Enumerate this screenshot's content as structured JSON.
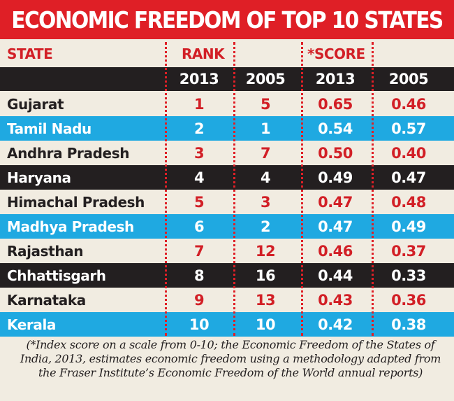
{
  "title": "ECONOMIC FREEDOM OF TOP 10 STATES",
  "headers": {
    "state": "STATE",
    "rank": "RANK",
    "score": "*SCORE",
    "year_a": "2013",
    "year_b": "2005"
  },
  "rows": [
    {
      "state": "Gujarat",
      "rank_2013": "1",
      "rank_2005": "5",
      "score_2013": "0.65",
      "score_2005": "0.46",
      "style": "light"
    },
    {
      "state": "Tamil Nadu",
      "rank_2013": "2",
      "rank_2005": "1",
      "score_2013": "0.54",
      "score_2005": "0.57",
      "style": "blue"
    },
    {
      "state": "Andhra Pradesh",
      "rank_2013": "3",
      "rank_2005": "7",
      "score_2013": "0.50",
      "score_2005": "0.40",
      "style": "light"
    },
    {
      "state": "Haryana",
      "rank_2013": "4",
      "rank_2005": "4",
      "score_2013": "0.49",
      "score_2005": "0.47",
      "style": "dark"
    },
    {
      "state": "Himachal Pradesh",
      "rank_2013": "5",
      "rank_2005": "3",
      "score_2013": "0.47",
      "score_2005": "0.48",
      "style": "light"
    },
    {
      "state": "Madhya Pradesh",
      "rank_2013": "6",
      "rank_2005": "2",
      "score_2013": "0.47",
      "score_2005": "0.49",
      "style": "blue"
    },
    {
      "state": "Rajasthan",
      "rank_2013": "7",
      "rank_2005": "12",
      "score_2013": "0.46",
      "score_2005": "0.37",
      "style": "light"
    },
    {
      "state": "Chhattisgarh",
      "rank_2013": "8",
      "rank_2005": "16",
      "score_2013": "0.44",
      "score_2005": "0.33",
      "style": "dark"
    },
    {
      "state": "Karnataka",
      "rank_2013": "9",
      "rank_2005": "13",
      "score_2013": "0.43",
      "score_2005": "0.36",
      "style": "light"
    },
    {
      "state": "Kerala",
      "rank_2013": "10",
      "rank_2005": "10",
      "score_2013": "0.42",
      "score_2005": "0.38",
      "style": "blue"
    }
  ],
  "footnote": "(*Index score on a scale from 0-10; the Economic Freedom of the States of India, 2013, estimates economic freedom using a methodology adapted from the Fraser Institute’s Economic Freedom of the World annual reports)",
  "colors": {
    "accent_red": "#df1f26",
    "dark_row": "#231f20",
    "blue_row": "#1fa9e1",
    "background": "#f1ece1"
  }
}
